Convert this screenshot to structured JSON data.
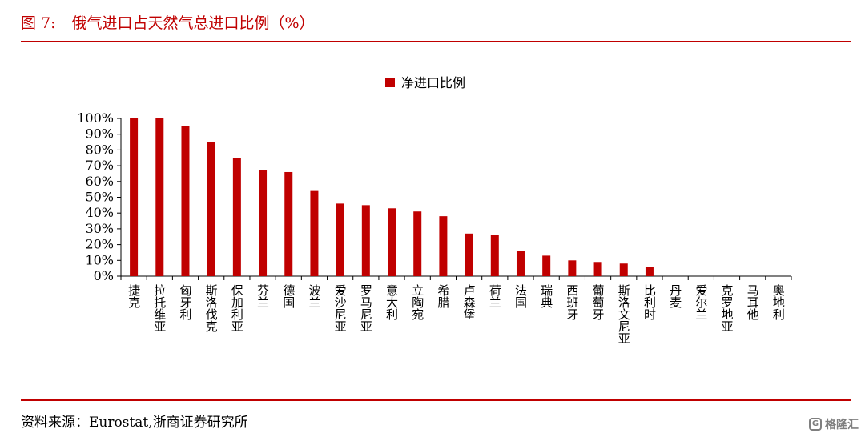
{
  "figure": {
    "number": "图 7:",
    "title": "俄气进口占天然气总进口比例（%）"
  },
  "source": "资料来源：Eurostat,浙商证券研究所",
  "watermark": {
    "logo": "G",
    "text": "格隆汇"
  },
  "colors": {
    "bar": "#c00000",
    "rule": "#c00000",
    "title": "#c00000",
    "axis": "#000000"
  },
  "chart_data": {
    "type": "bar",
    "legend": [
      "净进口比例"
    ],
    "legend_position": "top-center",
    "grid": false,
    "categories": [
      "捷克",
      "拉托维亚",
      "匈牙利",
      "斯洛伐克",
      "保加利亚",
      "芬兰",
      "德国",
      "波兰",
      "爱沙尼亚",
      "罗马尼亚",
      "意大利",
      "立陶宛",
      "希腊",
      "卢森堡",
      "荷兰",
      "法国",
      "瑞典",
      "西班牙",
      "葡萄牙",
      "斯洛文尼亚",
      "比利时",
      "丹麦",
      "爱尔兰",
      "克罗地亚",
      "马耳他",
      "奥地利"
    ],
    "series": [
      {
        "name": "净进口比例",
        "values": [
          100,
          100,
          95,
          85,
          75,
          67,
          66,
          54,
          46,
          45,
          43,
          41,
          38,
          27,
          26,
          16,
          13,
          10,
          9,
          8,
          6,
          0,
          0,
          0,
          0,
          0
        ]
      }
    ],
    "ylim": [
      0,
      100
    ],
    "y_ticks": [
      "0%",
      "10%",
      "20%",
      "30%",
      "40%",
      "50%",
      "60%",
      "70%",
      "80%",
      "90%",
      "100%"
    ]
  }
}
